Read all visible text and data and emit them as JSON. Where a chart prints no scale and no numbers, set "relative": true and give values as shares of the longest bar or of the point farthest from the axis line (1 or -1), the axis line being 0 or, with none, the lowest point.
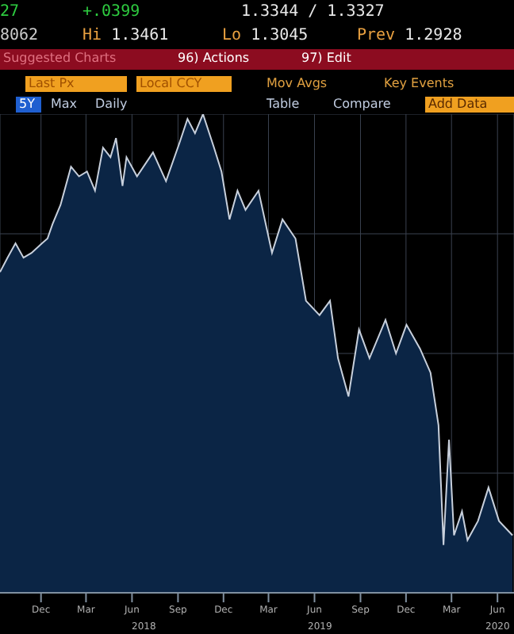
{
  "chart_data": {
    "type": "area",
    "relative": true,
    "grid": true,
    "annotations": [
      "27",
      "+.0399",
      "1.3344 / 1.3327",
      "8062",
      "Hi 1.3461",
      "Lo 1.3045",
      "Prev 1.2928",
      "Suggested Charts",
      "96) Actions",
      "97) Edit",
      "Last Px",
      "Local CCY",
      "Mov Avgs",
      "Key Events",
      "5Y",
      "Max",
      "Daily",
      "Table",
      "Compare",
      "Add Data",
      "2018",
      "2019",
      "2020"
    ],
    "xlim": [
      "2017-09-10",
      "2020-07-04"
    ],
    "xticks": [
      {
        "value": "2017-12-01",
        "label": "Dec"
      },
      {
        "value": "2018-03-01",
        "label": "Mar"
      },
      {
        "value": "2018-06-01",
        "label": "Jun"
      },
      {
        "value": "2018-09-01",
        "label": "Sep"
      },
      {
        "value": "2018-12-01",
        "label": "Dec"
      },
      {
        "value": "2019-03-01",
        "label": "Mar"
      },
      {
        "value": "2019-06-01",
        "label": "Jun"
      },
      {
        "value": "2019-09-01",
        "label": "Sep"
      },
      {
        "value": "2019-12-01",
        "label": "Dec"
      },
      {
        "value": "2020-03-01",
        "label": "Mar"
      },
      {
        "value": "2020-06-01",
        "label": "Jun"
      }
    ],
    "x": [
      "2017-09-10",
      "2017-09-25",
      "2017-10-11",
      "2017-10-27",
      "2017-11-12",
      "2017-12-03",
      "2017-12-14",
      "2017-12-24",
      "2018-01-09",
      "2018-01-30",
      "2018-02-15",
      "2018-03-03",
      "2018-03-19",
      "2018-04-04",
      "2018-04-19",
      "2018-04-30",
      "2018-05-13",
      "2018-05-21",
      "2018-06-11",
      "2018-07-13",
      "2018-08-08",
      "2018-09-04",
      "2018-09-20",
      "2018-10-05",
      "2018-10-21",
      "2018-11-12",
      "2018-11-27",
      "2018-12-13",
      "2018-12-29",
      "2019-01-14",
      "2019-02-09",
      "2019-03-08",
      "2019-03-29",
      "2019-04-24",
      "2019-05-15",
      "2019-06-11",
      "2019-07-02",
      "2019-07-18",
      "2019-08-08",
      "2019-08-29",
      "2019-09-19",
      "2019-10-21",
      "2019-11-11",
      "2019-12-02",
      "2019-12-29",
      "2020-01-19",
      "2020-02-04",
      "2020-02-14",
      "2020-02-25",
      "2020-03-06",
      "2020-03-22",
      "2020-04-02",
      "2020-04-23",
      "2020-05-14",
      "2020-06-04",
      "2020-07-01"
    ],
    "series": [
      {
        "color": "#0b2545",
        "values": [
          0.67,
          0.7,
          0.73,
          0.7,
          0.71,
          0.73,
          0.74,
          0.77,
          0.81,
          0.89,
          0.87,
          0.88,
          0.84,
          0.93,
          0.91,
          0.95,
          0.85,
          0.91,
          0.87,
          0.92,
          0.86,
          0.94,
          0.99,
          0.96,
          1,
          0.93,
          0.88,
          0.78,
          0.84,
          0.8,
          0.84,
          0.71,
          0.78,
          0.74,
          0.61,
          0.58,
          0.61,
          0.49,
          0.41,
          0.55,
          0.49,
          0.57,
          0.5,
          0.56,
          0.51,
          0.46,
          0.35,
          0.1,
          0.32,
          0.12,
          0.17,
          0.11,
          0.15,
          0.22,
          0.15,
          0.12
        ]
      }
    ]
  }
}
